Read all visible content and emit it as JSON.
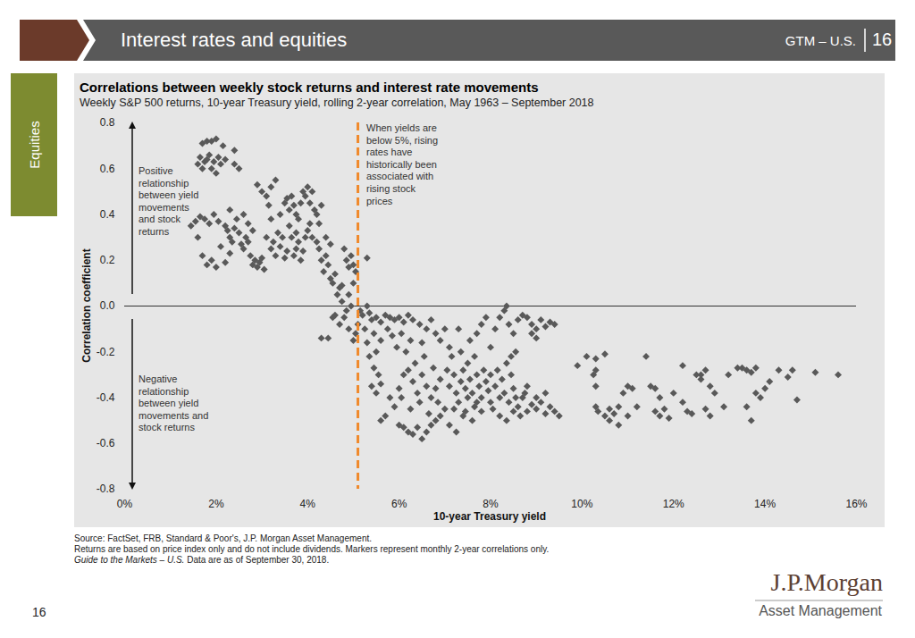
{
  "slide": {
    "header_title": "Interest rates and equities",
    "header_code": "GTM – U.S.",
    "header_page": "16",
    "section": "Equities",
    "source": [
      "Source: FactSet, FRB, Standard & Poor's, J.P. Morgan Asset Management.",
      "Returns are based on price index only and do not include dividends. Markers represent monthly 2-year correlations only."
    ],
    "source_italic": "Guide to the Markets – U.S.",
    "source_end": "Data are as of September 30, 2018.",
    "page_number": "16",
    "logo": "J.P.Morgan",
    "logo_sub": "Asset Management"
  },
  "chart_data": {
    "type": "scatter",
    "title": "Correlations between weekly stock returns and interest rate movements",
    "subtitle": "Weekly S&P 500 returns, 10-year Treasury yield, rolling 2-year correlation, May 1963 – September 2018",
    "x_label": "10-year Treasury yield",
    "y_label": "Correlation coefficient",
    "annotation_positive": [
      "Positive",
      "relationship",
      "between yield",
      "movements",
      "and stock",
      "returns"
    ],
    "annotation_negative": [
      "Negative",
      "relationship",
      "between yield",
      "movements and",
      "stock returns"
    ],
    "annotation_reference": [
      "When yields are",
      "below 5%, rising",
      "rates have",
      "historically been",
      "associated with",
      "rising stock",
      "prices"
    ],
    "reference_line": {
      "x": 5.1,
      "color": "#f0892b",
      "line_style": "dashed"
    },
    "zero_line": {
      "y": 0,
      "color": "#333333"
    },
    "xlim": [
      0,
      16
    ],
    "xticks": [
      {
        "value": 0,
        "label": "0%"
      },
      {
        "value": 2,
        "label": "2%"
      },
      {
        "value": 4,
        "label": "4%"
      },
      {
        "value": 6,
        "label": "6%"
      },
      {
        "value": 8,
        "label": "8%"
      },
      {
        "value": 10,
        "label": "10%"
      },
      {
        "value": 12,
        "label": "12%"
      },
      {
        "value": 14,
        "label": "14%"
      },
      {
        "value": 16,
        "label": "16%"
      }
    ],
    "ylim": [
      -0.8,
      0.8
    ],
    "yticks": [
      -0.8,
      -0.6,
      -0.4,
      -0.2,
      {
        "value": 0,
        "label": "0.0"
      },
      0.2,
      0.4,
      0.6,
      0.8
    ],
    "grid": false,
    "color": "#595959",
    "marker": "diamond",
    "x": [
      1.6,
      1.65,
      1.7,
      1.75,
      1.8,
      1.85,
      1.9,
      1.95,
      2.0,
      2.05,
      2.1,
      2.15,
      1.7,
      1.9,
      2.0,
      2.2,
      2.4,
      2.5,
      2.4,
      1.8,
      1.45,
      1.55,
      1.65,
      1.75,
      1.85,
      1.95,
      2.05,
      1.6,
      1.7,
      1.8,
      1.9,
      2.0,
      2.1,
      2.2,
      2.3,
      2.2,
      2.25,
      2.3,
      2.35,
      2.4,
      2.45,
      2.5,
      2.55,
      2.6,
      2.65,
      2.7,
      2.75,
      2.8,
      2.85,
      2.9,
      2.95,
      3.0,
      3.05,
      2.3,
      2.6,
      2.9,
      3.0,
      3.1,
      3.2,
      3.3,
      3.15,
      2.7,
      2.8,
      3.1,
      3.2,
      3.25,
      3.3,
      3.35,
      3.4,
      3.45,
      3.5,
      3.55,
      3.6,
      3.2,
      3.4,
      3.5,
      3.55,
      3.6,
      3.65,
      3.7,
      3.75,
      3.8,
      3.85,
      3.9,
      3.95,
      4.0,
      4.05,
      4.1,
      4.15,
      4.2,
      4.25,
      4.3,
      3.7,
      3.75,
      3.8,
      3.85,
      3.9,
      3.95,
      4.0,
      4.05,
      4.1,
      3.65,
      3.75,
      4.2,
      4.25,
      4.3,
      4.35,
      4.4,
      4.45,
      4.5,
      4.55,
      4.6,
      4.65,
      4.7,
      4.75,
      4.8,
      4.85,
      4.9,
      4.95,
      5.0,
      5.05,
      5.3,
      4.6,
      4.7,
      4.8,
      4.85,
      4.9,
      4.95,
      5.0,
      5.05,
      4.55,
      4.45,
      4.3,
      4.75,
      4.9,
      5.1,
      5.0,
      4.4,
      4.5,
      5.15,
      5.2,
      5.3,
      5.35,
      5.4,
      5.5,
      5.6,
      5.7,
      5.8,
      5.9,
      6.0,
      6.1,
      6.2,
      6.3,
      5.25,
      5.45,
      5.6,
      5.75,
      5.85,
      5.95,
      6.05,
      6.15,
      6.25,
      5.5,
      5.3,
      5.35,
      5.45,
      5.55,
      5.4,
      5.5,
      5.6,
      5.6,
      5.7,
      5.8,
      5.9,
      6.0,
      6.1,
      6.2,
      6.3,
      6.4,
      6.5,
      6.6,
      6.7,
      6.8,
      6.9,
      7.0,
      6.0,
      6.1,
      6.2,
      6.3,
      6.4,
      6.5,
      6.6,
      6.7,
      6.8,
      6.9,
      6.05,
      6.25,
      6.45,
      6.65,
      6.85,
      6.35,
      6.55,
      6.75,
      6.45,
      6.6,
      6.7,
      6.8,
      6.9,
      7.0,
      6.5,
      7.1,
      7.1,
      7.2,
      7.25,
      7.3,
      7.35,
      7.4,
      7.45,
      7.5,
      7.55,
      7.6,
      7.65,
      7.7,
      7.75,
      7.8,
      7.85,
      7.9,
      7.95,
      8.0,
      7.2,
      7.4,
      7.6,
      7.8,
      7.15,
      7.35,
      7.55,
      7.7,
      7.8,
      7.9,
      8.0,
      7.3,
      7.5,
      7.65,
      7.05,
      7.45,
      7.1,
      7.25,
      7.7,
      8.0,
      8.1,
      8.2,
      8.3,
      8.4,
      8.5,
      8.6,
      8.7,
      8.8,
      8.9,
      9.0,
      9.1,
      9.2,
      9.3,
      9.4,
      8.15,
      8.25,
      8.35,
      8.45,
      8.55,
      8.65,
      8.75,
      8.05,
      8.2,
      8.35,
      8.5,
      8.1,
      8.2,
      8.3,
      8.35,
      8.4,
      8.5,
      8.6,
      8.8,
      8.9,
      9.0,
      9.1,
      9.2,
      9.3,
      9.4,
      8.9,
      9.0,
      8.7,
      9.0,
      9.2,
      8.8,
      9.5,
      8.55,
      8.45,
      9.9,
      10.1,
      10.3,
      10.5,
      10.25,
      10.3,
      10.3,
      10.3,
      10.35,
      10.5,
      10.6,
      10.7,
      10.8,
      10.6,
      10.8,
      10.9,
      11.0,
      11.1,
      11.2,
      11.0,
      11.4,
      11.5,
      11.6,
      11.7,
      11.6,
      11.7,
      11.8,
      11.9,
      12.0,
      12.2,
      12.3,
      12.4,
      12.2,
      12.5,
      12.7,
      12.6,
      12.8,
      12.9,
      12.7,
      12.8,
      13.2,
      13.1,
      13.4,
      13.5,
      13.6,
      13.7,
      13.8,
      13.8,
      13.6,
      13.7,
      13.9,
      14.0,
      14.1,
      14.3,
      14.6,
      14.7,
      15.1,
      15.6,
      14.5,
      12.6
    ],
    "values": [
      0.62,
      0.65,
      0.71,
      0.63,
      0.72,
      0.66,
      0.72,
      0.63,
      0.73,
      0.65,
      0.62,
      0.7,
      0.6,
      0.6,
      0.58,
      0.64,
      0.62,
      0.6,
      0.68,
      0.64,
      0.35,
      0.37,
      0.39,
      0.38,
      0.36,
      0.4,
      0.37,
      0.3,
      0.22,
      0.18,
      0.2,
      0.17,
      0.26,
      0.19,
      0.23,
      0.35,
      0.33,
      0.3,
      0.28,
      0.34,
      0.38,
      0.32,
      0.27,
      0.25,
      0.3,
      0.36,
      0.22,
      0.18,
      0.2,
      0.17,
      0.19,
      0.21,
      0.16,
      0.42,
      0.4,
      0.53,
      0.5,
      0.48,
      0.52,
      0.55,
      0.44,
      0.28,
      0.33,
      0.3,
      0.25,
      0.28,
      0.22,
      0.32,
      0.26,
      0.3,
      0.21,
      0.24,
      0.35,
      0.38,
      0.4,
      0.45,
      0.47,
      0.42,
      0.48,
      0.44,
      0.4,
      0.38,
      0.45,
      0.5,
      0.48,
      0.52,
      0.45,
      0.5,
      0.42,
      0.4,
      0.36,
      0.44,
      0.22,
      0.25,
      0.28,
      0.2,
      0.24,
      0.3,
      0.33,
      0.36,
      0.3,
      0.3,
      0.32,
      0.28,
      0.25,
      0.2,
      0.15,
      0.22,
      0.18,
      0.12,
      0.1,
      0.14,
      0.05,
      0.08,
      0.02,
      0.25,
      0.2,
      0.17,
      0.22,
      0.18,
      0.15,
      0.21,
      -0.04,
      -0.08,
      -0.05,
      -0.02,
      -0.1,
      0.0,
      -0.15,
      -0.12,
      -0.05,
      -0.14,
      -0.14,
      0.09,
      0.05,
      -0.08,
      0.1,
      0.3,
      0.27,
      -0.02,
      -0.04,
      0.0,
      -0.03,
      -0.06,
      -0.05,
      -0.07,
      -0.04,
      -0.05,
      -0.06,
      -0.05,
      -0.07,
      -0.04,
      -0.06,
      -0.1,
      -0.12,
      -0.15,
      -0.1,
      -0.13,
      -0.18,
      -0.12,
      -0.2,
      -0.15,
      -0.2,
      -0.16,
      -0.22,
      -0.27,
      -0.3,
      -0.35,
      -0.38,
      -0.34,
      -0.5,
      -0.48,
      -0.4,
      -0.44,
      -0.52,
      -0.53,
      -0.55,
      -0.56,
      -0.53,
      -0.58,
      -0.55,
      -0.52,
      -0.5,
      -0.48,
      -0.45,
      -0.36,
      -0.3,
      -0.28,
      -0.33,
      -0.38,
      -0.3,
      -0.35,
      -0.4,
      -0.36,
      -0.32,
      -0.4,
      -0.45,
      -0.42,
      -0.47,
      -0.42,
      -0.25,
      -0.22,
      -0.27,
      -0.08,
      -0.1,
      -0.06,
      -0.12,
      -0.15,
      -0.1,
      -0.16,
      -0.18,
      -0.35,
      -0.3,
      -0.38,
      -0.42,
      -0.33,
      -0.28,
      -0.36,
      -0.4,
      -0.32,
      -0.38,
      -0.44,
      -0.3,
      -0.35,
      -0.4,
      -0.28,
      -0.33,
      -0.37,
      -0.42,
      -0.45,
      -0.48,
      -0.5,
      -0.46,
      -0.22,
      -0.2,
      -0.15,
      -0.12,
      -0.08,
      -0.05,
      -0.18,
      -0.1,
      -0.25,
      -0.22,
      -0.28,
      -0.46,
      -0.52,
      -0.55,
      -0.42,
      -0.3,
      -0.35,
      -0.4,
      -0.38,
      -0.42,
      -0.36,
      -0.44,
      -0.4,
      -0.46,
      -0.43,
      -0.45,
      -0.42,
      -0.47,
      -0.44,
      -0.46,
      -0.28,
      -0.32,
      -0.25,
      -0.3,
      -0.2,
      -0.48,
      -0.38,
      -0.45,
      -0.48,
      -0.5,
      -0.46,
      -0.1,
      -0.05,
      -0.02,
      0.0,
      -0.08,
      -0.12,
      -0.06,
      -0.05,
      -0.08,
      -0.1,
      -0.06,
      -0.09,
      -0.07,
      -0.08,
      -0.12,
      -0.14,
      -0.04,
      -0.4,
      -0.38,
      -0.35,
      -0.48,
      -0.4,
      -0.22,
      -0.26,
      -0.22,
      -0.23,
      -0.21,
      -0.3,
      -0.28,
      -0.35,
      -0.44,
      -0.46,
      -0.48,
      -0.45,
      -0.47,
      -0.44,
      -0.5,
      -0.52,
      -0.38,
      -0.35,
      -0.36,
      -0.44,
      -0.48,
      -0.22,
      -0.35,
      -0.36,
      -0.4,
      -0.46,
      -0.48,
      -0.45,
      -0.49,
      -0.38,
      -0.42,
      -0.46,
      -0.47,
      -0.26,
      -0.3,
      -0.28,
      -0.32,
      -0.35,
      -0.38,
      -0.45,
      -0.48,
      -0.3,
      -0.44,
      -0.27,
      -0.27,
      -0.28,
      -0.29,
      -0.27,
      -0.38,
      -0.44,
      -0.5,
      -0.4,
      -0.36,
      -0.33,
      -0.28,
      -0.28,
      -0.41,
      -0.29,
      -0.3,
      -0.31,
      -0.3
    ]
  }
}
